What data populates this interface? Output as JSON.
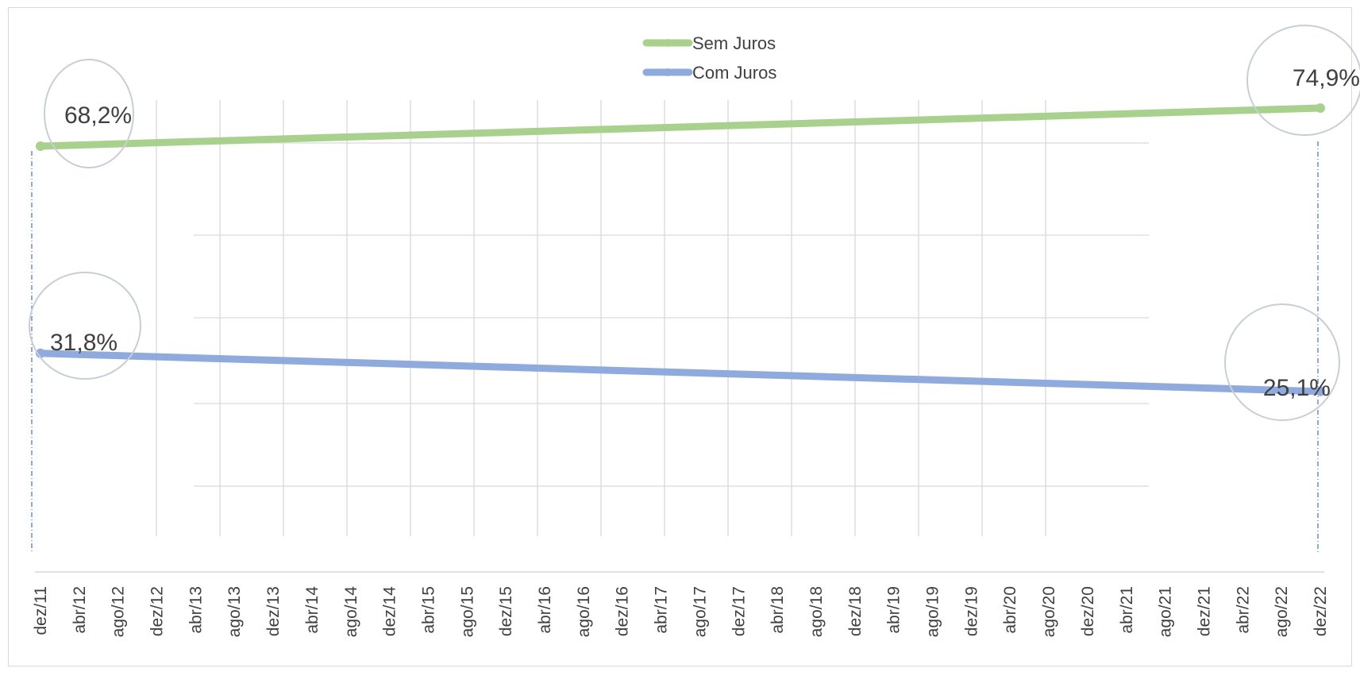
{
  "chart_data": {
    "type": "line",
    "title": "",
    "xlabel": "",
    "ylabel": "",
    "legend_position": "top",
    "grid": true,
    "ylim": [
      0,
      0.8
    ],
    "categories": [
      "dez/11",
      "abr/12",
      "ago/12",
      "dez/12",
      "abr/13",
      "ago/13",
      "dez/13",
      "abr/14",
      "ago/14",
      "dez/14",
      "abr/15",
      "ago/15",
      "dez/15",
      "abr/16",
      "ago/16",
      "dez/16",
      "abr/17",
      "ago/17",
      "dez/17",
      "abr/18",
      "ago/18",
      "dez/18",
      "abr/19",
      "ago/19",
      "dez/19",
      "abr/20",
      "ago/20",
      "dez/20",
      "abr/21",
      "ago/21",
      "dez/21",
      "abr/22",
      "ago/22",
      "dez/22"
    ],
    "series": [
      {
        "name": "Sem Juros",
        "color": "#a9d18e",
        "start": 0.682,
        "end": 0.749
      },
      {
        "name": "Com Juros",
        "color": "#8faadc",
        "start": 0.318,
        "end": 0.251
      }
    ],
    "annotations": [
      {
        "text": "68,2%",
        "series": "Sem Juros",
        "point": "start"
      },
      {
        "text": "74,9%",
        "series": "Sem Juros",
        "point": "end"
      },
      {
        "text": "31,8%",
        "series": "Com Juros",
        "point": "start"
      },
      {
        "text": "25,1%",
        "series": "Com Juros",
        "point": "end"
      }
    ]
  }
}
